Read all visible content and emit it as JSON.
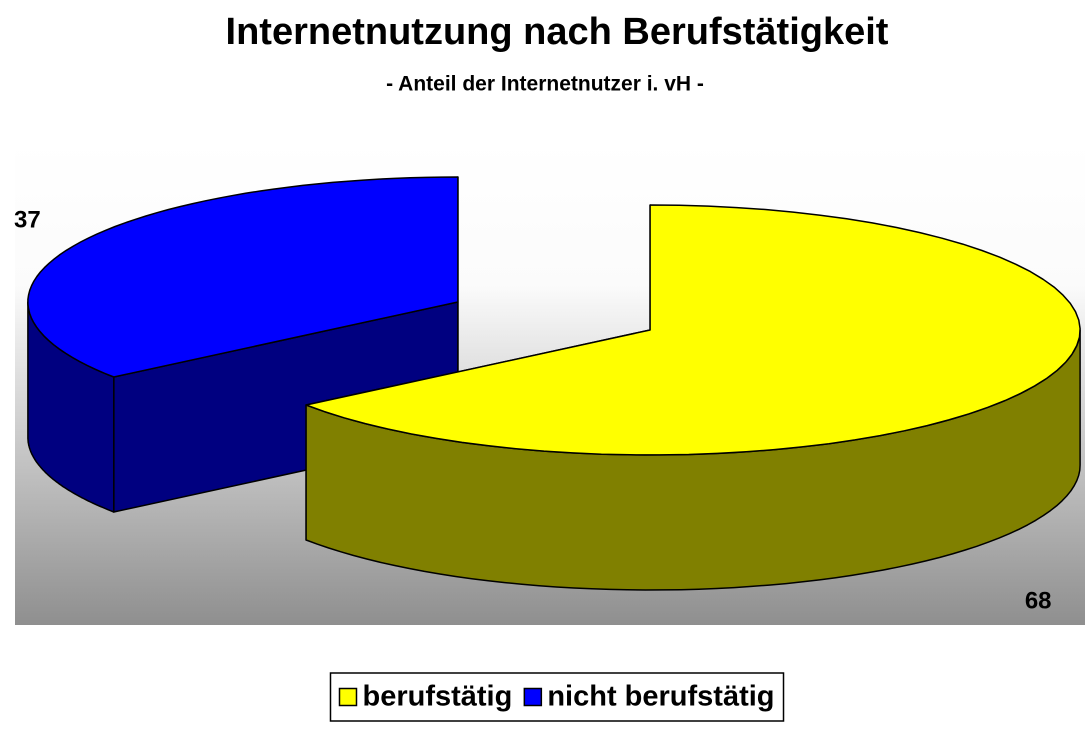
{
  "chart_data": {
    "type": "pie",
    "title": "Internetnutzung nach Berufstätigkeit",
    "subtitle": "- Anteil der Internetnutzer i. vH -",
    "categories": [
      "berufstätig",
      "nicht berufstätig"
    ],
    "values": [
      68,
      37
    ],
    "colors": [
      "#ffff00",
      "#0000ff"
    ],
    "side_colors": [
      "#808000",
      "#000080"
    ],
    "legend": "bottom"
  }
}
